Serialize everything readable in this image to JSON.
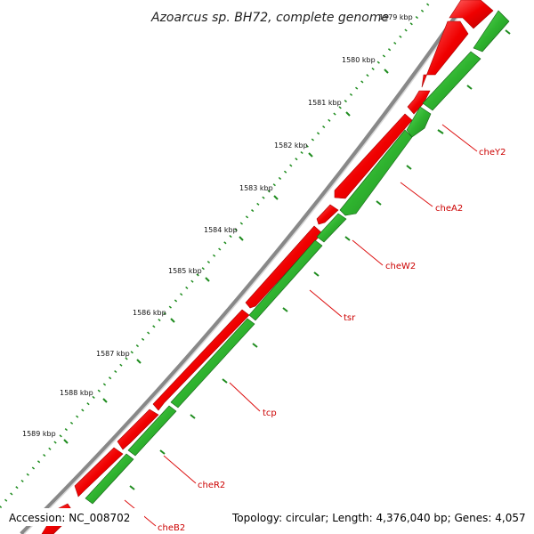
{
  "map": {
    "title": "Azoarcus sp. BH72, complete genome",
    "accession": "Accession: NC_008702",
    "topology": "Topology: circular; Length: 4,376,040 bp; Genes: 4,057"
  },
  "ticks": [
    "1579 kbp",
    "1580 kbp",
    "1581 kbp",
    "1582 kbp",
    "1583 kbp",
    "1584 kbp",
    "1585 kbp",
    "1586 kbp",
    "1587 kbp",
    "1588 kbp",
    "1589 kbp"
  ],
  "genes": [
    "cheY2",
    "cheA2",
    "cheW2",
    "tsr",
    "tcp",
    "cheR2",
    "cheB2"
  ],
  "colors": {
    "forward_strand": "#ee1111",
    "reverse_strand": "#33bb33",
    "backbone": "#9a9a9a",
    "tick_marks": "#1e8c1e",
    "label_lines": "#dd1111"
  }
}
